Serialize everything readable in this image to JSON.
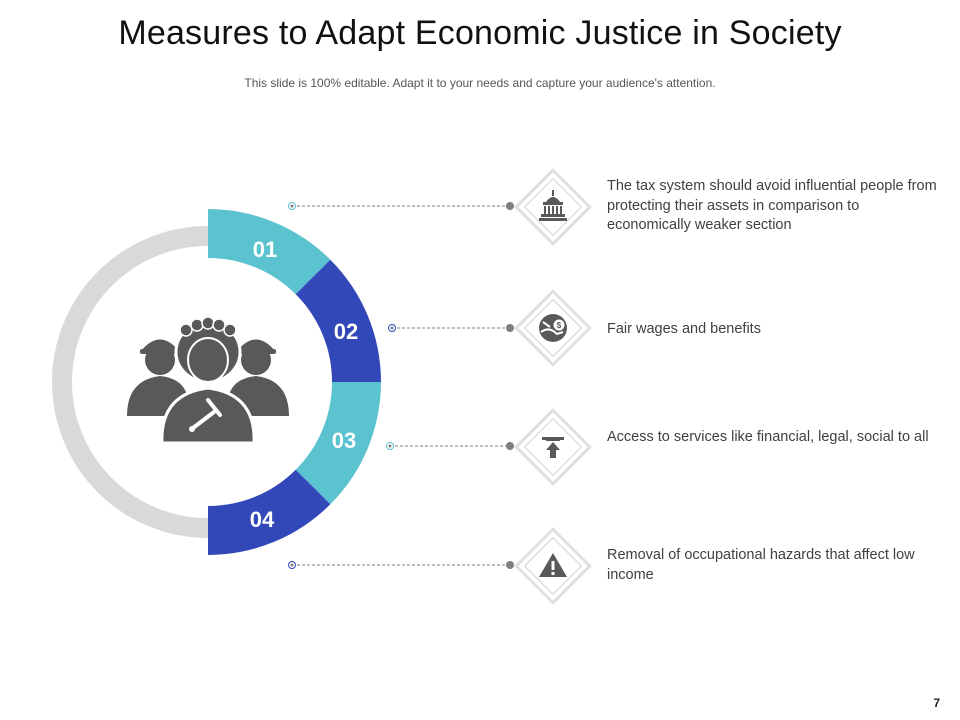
{
  "slide": {
    "title": "Measures to Adapt Economic Justice in Society",
    "subtitle": "This slide is 100% editable. Adapt it to your needs and capture your audience's attention.",
    "page_number": "7"
  },
  "colors": {
    "teal": "#5BC2CF",
    "blue": "#3348B8",
    "ring_gray": "#D9D9D9",
    "icon_gray": "#595959",
    "connector": "#7F7F7F"
  },
  "center_icon": "judge-and-officers-icon",
  "items": [
    {
      "number": "01",
      "icon": "government-building-icon",
      "text": "The tax system should avoid influential people from protecting their assets in comparison to economically weaker section"
    },
    {
      "number": "02",
      "icon": "money-hand-icon",
      "text": "Fair wages and benefits"
    },
    {
      "number": "03",
      "icon": "service-access-icon",
      "text": "Access to services like financial, legal, social to all"
    },
    {
      "number": "04",
      "icon": "warning-hazard-icon",
      "text": "Removal of occupational hazards that affect low income"
    }
  ]
}
